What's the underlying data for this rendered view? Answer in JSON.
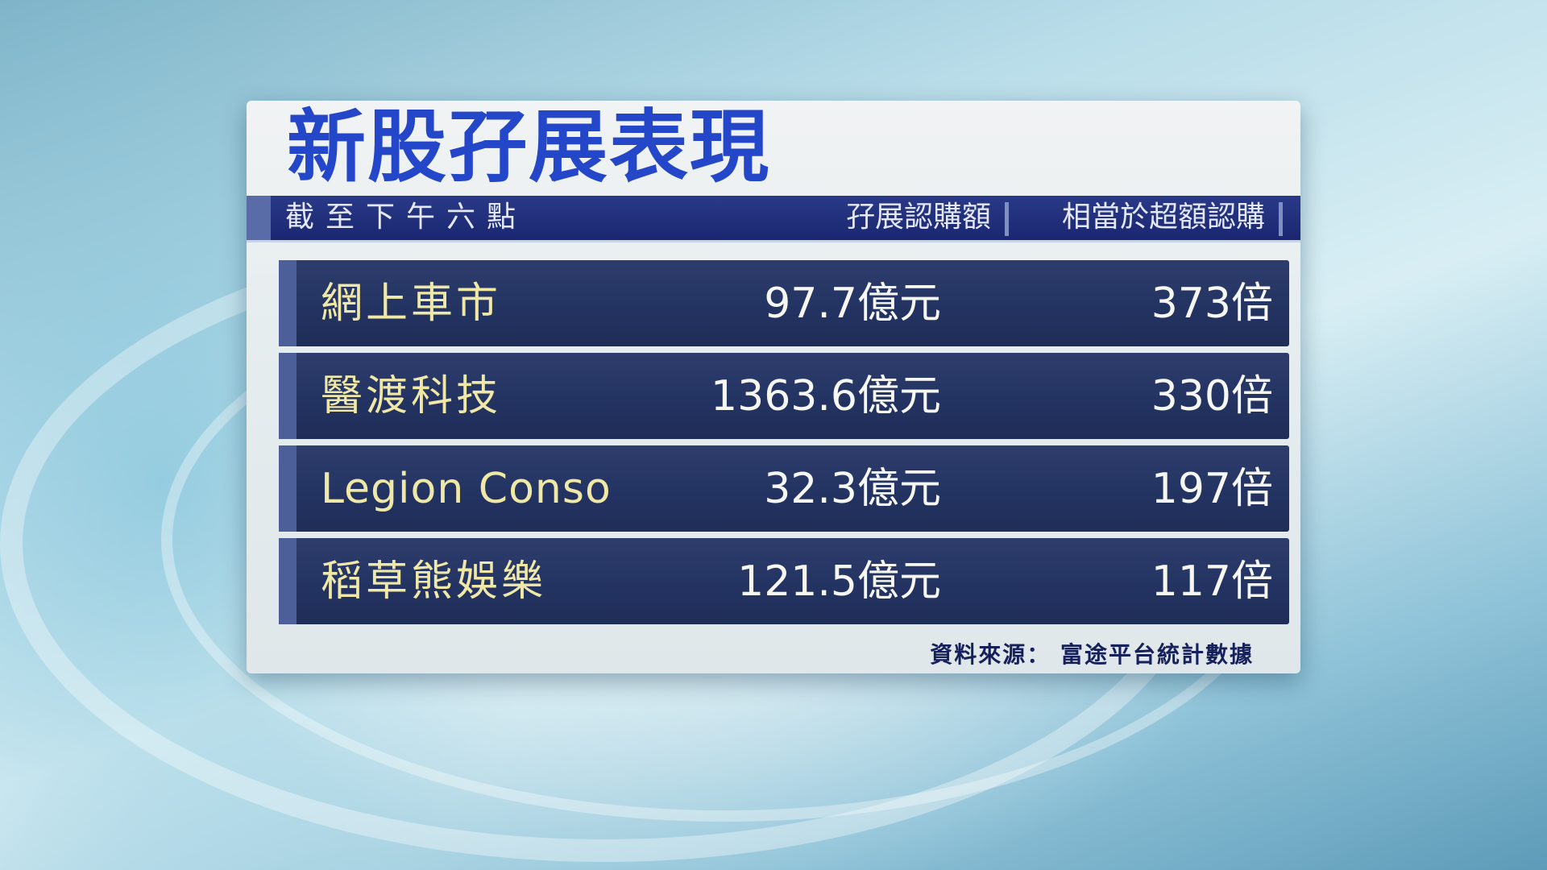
{
  "title": "新股孖展表現",
  "header": {
    "as_of": "截至下午六點",
    "col_margin": "孖展認購額",
    "col_oversub": "相當於超額認購"
  },
  "rows": [
    {
      "name": "網上車市",
      "margin": "97.7億元",
      "oversub": "373倍"
    },
    {
      "name": "醫渡科技",
      "margin": "1363.6億元",
      "oversub": "330倍"
    },
    {
      "name": "Legion Conso",
      "margin": "32.3億元",
      "oversub": "197倍"
    },
    {
      "name": "稻草熊娛樂",
      "margin": "121.5億元",
      "oversub": "117倍"
    }
  ],
  "source": "資料來源： 富途平台統計數據",
  "colors": {
    "title": "#2446c8",
    "header_bar": "#1a2670",
    "row_bg": "#243463",
    "name_text": "#efe8a6"
  }
}
